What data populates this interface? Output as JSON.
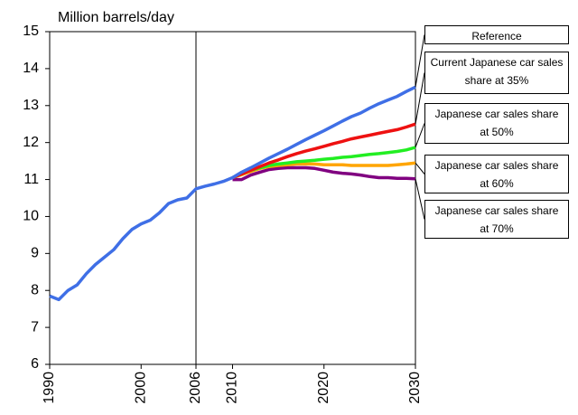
{
  "chart_data": {
    "type": "line",
    "ylabel": "Million barrels/day",
    "x": [
      1990,
      1991,
      1992,
      1993,
      1994,
      1995,
      1996,
      1997,
      1998,
      1999,
      2000,
      2001,
      2002,
      2003,
      2004,
      2005,
      2006,
      2007,
      2008,
      2009,
      2010,
      2011,
      2012,
      2013,
      2014,
      2015,
      2016,
      2017,
      2018,
      2019,
      2020,
      2021,
      2022,
      2023,
      2024,
      2025,
      2026,
      2027,
      2028,
      2029,
      2030
    ],
    "xlim": [
      1990,
      2030
    ],
    "xticks": [
      1990,
      2000,
      2006,
      2010,
      2020,
      2030
    ],
    "ylim": [
      6,
      15
    ],
    "yticks": [
      6,
      7,
      8,
      9,
      10,
      11,
      12,
      13,
      14,
      15
    ],
    "vline": 2006,
    "series": [
      {
        "name": "Reference",
        "color": "#3f6fe6",
        "values": [
          7.85,
          7.75,
          8.0,
          8.15,
          8.45,
          8.7,
          8.9,
          9.1,
          9.4,
          9.65,
          9.8,
          9.9,
          10.1,
          10.35,
          10.45,
          10.5,
          10.75,
          10.82,
          10.88,
          10.95,
          11.05,
          11.2,
          11.32,
          11.45,
          11.58,
          11.7,
          11.82,
          11.95,
          12.08,
          12.2,
          12.32,
          12.45,
          12.58,
          12.7,
          12.8,
          12.93,
          13.05,
          13.15,
          13.25,
          13.38,
          13.5
        ]
      },
      {
        "name": "Current Japanese car sales share at 35%",
        "color": "#ee1111",
        "values": [
          null,
          null,
          null,
          null,
          null,
          null,
          null,
          null,
          null,
          null,
          null,
          null,
          null,
          null,
          null,
          null,
          null,
          null,
          null,
          null,
          11.05,
          11.15,
          11.25,
          11.35,
          11.45,
          11.53,
          11.62,
          11.7,
          11.77,
          11.83,
          11.9,
          11.97,
          12.03,
          12.1,
          12.15,
          12.2,
          12.25,
          12.3,
          12.35,
          12.42,
          12.5
        ]
      },
      {
        "name": "Japanese car sales share at 50%",
        "color": "#22ee22",
        "values": [
          null,
          null,
          null,
          null,
          null,
          null,
          null,
          null,
          null,
          null,
          null,
          null,
          null,
          null,
          null,
          null,
          null,
          null,
          null,
          null,
          11.05,
          11.15,
          11.25,
          11.32,
          11.38,
          11.42,
          11.45,
          11.48,
          11.5,
          11.52,
          11.55,
          11.57,
          11.6,
          11.62,
          11.65,
          11.68,
          11.7,
          11.73,
          11.76,
          11.8,
          11.87
        ]
      },
      {
        "name": "Japanese car sales share at 60%",
        "color": "#ffa500",
        "values": [
          null,
          null,
          null,
          null,
          null,
          null,
          null,
          null,
          null,
          null,
          null,
          null,
          null,
          null,
          null,
          null,
          null,
          null,
          null,
          null,
          11.05,
          11.13,
          11.22,
          11.3,
          11.35,
          11.38,
          11.4,
          11.42,
          11.42,
          11.42,
          11.4,
          11.4,
          11.4,
          11.38,
          11.38,
          11.38,
          11.38,
          11.38,
          11.4,
          11.42,
          11.45
        ]
      },
      {
        "name": "Japanese car sales share at 70%",
        "color": "#800080",
        "values": [
          null,
          null,
          null,
          null,
          null,
          null,
          null,
          null,
          null,
          null,
          null,
          null,
          null,
          null,
          null,
          null,
          null,
          null,
          null,
          null,
          11.0,
          11.0,
          11.12,
          11.2,
          11.27,
          11.3,
          11.32,
          11.32,
          11.32,
          11.3,
          11.25,
          11.2,
          11.17,
          11.15,
          11.12,
          11.08,
          11.05,
          11.05,
          11.03,
          11.03,
          11.02
        ]
      }
    ]
  }
}
